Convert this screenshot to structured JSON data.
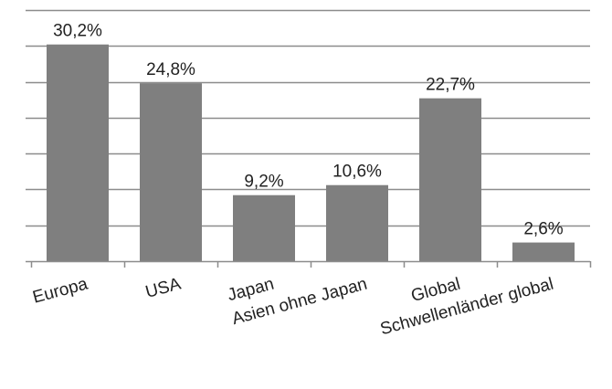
{
  "chart_data": {
    "type": "bar",
    "categories": [
      "Europa",
      "USA",
      "Japan",
      "Asien ohne Japan",
      "Global",
      "Schwellenländer global"
    ],
    "values": [
      30.2,
      24.8,
      9.2,
      10.6,
      22.7,
      2.6
    ],
    "data_labels": [
      "30,2%",
      "24,8%",
      "9,2%",
      "10,6%",
      "22,7%",
      "2,6%"
    ],
    "ylim": [
      0,
      35
    ],
    "ytick_step": 5,
    "grid": true,
    "legend": "none",
    "bar_color": "#7f7f7f",
    "grid_color": "#8c8c8c"
  }
}
